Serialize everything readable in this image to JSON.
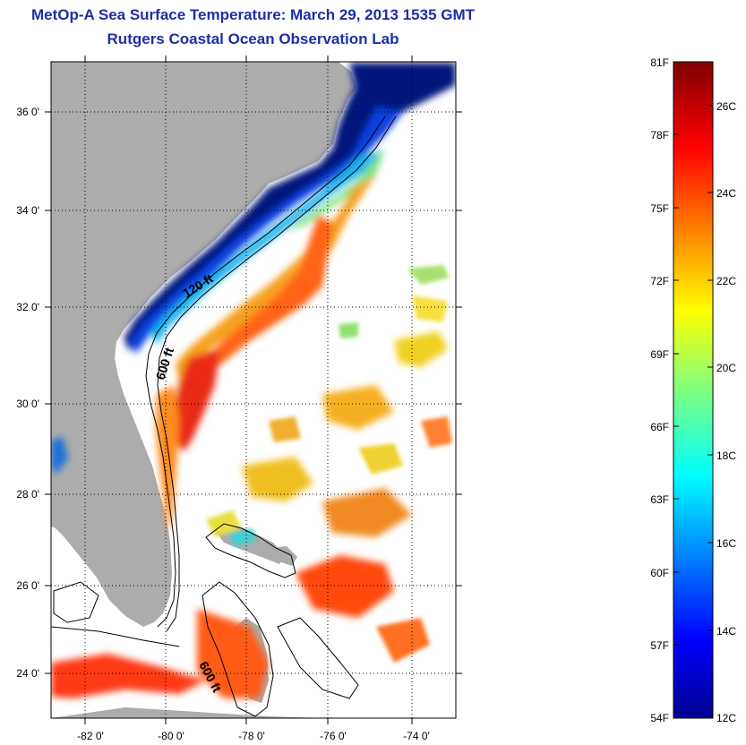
{
  "title": "MetOp-A Sea Surface Temperature:  March 29, 2013 1535 GMT",
  "subtitle": "Rutgers Coastal Ocean Observation Lab",
  "map": {
    "lat_labels": [
      "36 0'",
      "34 0'",
      "32 0'",
      "30 0'",
      "28 0'",
      "26 0'",
      "24 0'"
    ],
    "lon_labels": [
      "-82 0'",
      "-80 0'",
      "-78 0'",
      "-76 0'",
      "-74 0'"
    ],
    "contour_labels": [
      "120 ft",
      "600 ft",
      "600 ft"
    ],
    "colors": {
      "land": "#acacac",
      "no_data": "#ffffff",
      "contour": "#000000"
    }
  },
  "colorbar": {
    "fahrenheit_labels": [
      "81F",
      "78F",
      "75F",
      "72F",
      "69F",
      "66F",
      "63F",
      "60F",
      "57F",
      "54F"
    ],
    "celsius_labels": [
      "26C",
      "24C",
      "22C",
      "20C",
      "18C",
      "16C",
      "14C",
      "12C"
    ],
    "colormap": "jet",
    "range_celsius": [
      12,
      27.2
    ]
  }
}
